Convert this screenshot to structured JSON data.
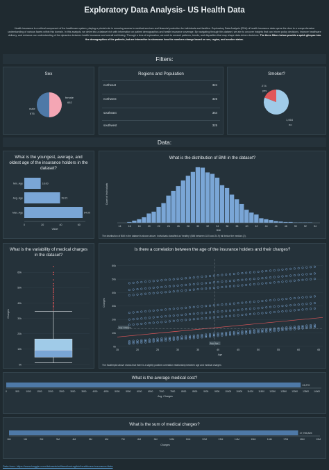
{
  "header": {
    "title": "Exploratory Data Analysis- US Health Data",
    "intro_text": "Health insurance is a critical component of the healthcare system, playing a pivotal role in ensuring access to medical services and financial protection for individuals and families. Exploratory Data Analysis (EDA) of health insurance data opens the door to a comprehensive understanding of various facets within this domain. In this analysis, we delve into a dataset rich with information on patient demographics and health insurance coverage. By navigating through this dataset, we aim to uncover insights that can inform policy decisions, improve healthcare delivery, and enhance our understanding of the dynamics between health insurance and overall well-being. Through a lens of exploration, we seek to unravel patterns, trends, and disparities that may shape data-driven decisions.",
    "intro_bold": "The three filters below provide a quick glimpse into the demographics of the patients, but are interactive to showcase how the numbers change based on sex, region, and smoker status."
  },
  "filters": {
    "heading": "Filters:",
    "sex": {
      "title": "Sex",
      "female_label": "female",
      "female_value": "662",
      "male_label": "male",
      "male_value": "676",
      "female_color": "#f4a6b4",
      "male_color": "#4e79a7"
    },
    "regions": {
      "title": "Regions and Population",
      "rows": [
        {
          "name": "northeast",
          "value": "324"
        },
        {
          "name": "northwest",
          "value": "325"
        },
        {
          "name": "southeast",
          "value": "364"
        },
        {
          "name": "southwest",
          "value": "325"
        }
      ]
    },
    "smoker": {
      "title": "Smoker?",
      "yes_label": "yes",
      "yes_value": "274",
      "no_label": "no",
      "no_value": "1,064",
      "yes_color": "#e15759",
      "no_color": "#a0cbe8"
    }
  },
  "data_section": {
    "heading": "Data:"
  },
  "age_panel": {
    "title": "What is the youngest, average, and oldest age of the insurance holders in the dataset?",
    "xlabel": "Value"
  },
  "bmi_panel": {
    "title": "What is the distribution of BMI in the dataset?",
    "xlabel": "BMI",
    "ylabel": "Count of Individuals",
    "caption": "The distribution of BMI in the dataset is shown above. Individuals classified as 'healthy' (BMI between 18.5 and 24.9) fall below the median (2)."
  },
  "charges_box_panel": {
    "title": "What is the variability of medical charges in the dataset?",
    "ylabel": "Charges"
  },
  "scatter_panel": {
    "title": "Is there a correlation between the age of the insurance holders and their charges?",
    "xlabel": "Age",
    "ylabel": "Charges",
    "caption": "The Scatterplot above shows that there is a slightly positive correlation relationship between age and medical charges"
  },
  "avg_panel": {
    "title": "What is the average medical cost?",
    "xlabel": "Avg. Charges"
  },
  "sum_panel": {
    "title": "What is the sum of medical charges?",
    "xlabel": "Charges"
  },
  "footer": {
    "link": "Data from: https://www.kaggle.com/datasets/willianoliveiragibin/healthcare-insurance/data"
  },
  "chart_data": [
    {
      "type": "pie",
      "title": "Sex",
      "categories": [
        "female",
        "male"
      ],
      "values": [
        662,
        676
      ],
      "colors": [
        "#f4a6b4",
        "#4e79a7"
      ]
    },
    {
      "type": "table",
      "title": "Regions and Population",
      "categories": [
        "northeast",
        "northwest",
        "southeast",
        "southwest"
      ],
      "values": [
        324,
        325,
        364,
        325
      ]
    },
    {
      "type": "pie",
      "title": "Smoker?",
      "categories": [
        "yes",
        "no"
      ],
      "values": [
        274,
        1064
      ],
      "colors": [
        "#e15759",
        "#a0cbe8"
      ]
    },
    {
      "type": "bar",
      "title": "What is the youngest, average, and oldest age of the insurance holders in the dataset?",
      "categories": [
        "Min. Age",
        "Avg. Age",
        "Max. Age"
      ],
      "values": [
        18.0,
        39.21,
        64.0
      ],
      "data_labels": [
        "18.00",
        "39.21",
        "64.00"
      ],
      "xlabel": "Value",
      "xlim": [
        0,
        67
      ],
      "xticks": [
        0,
        20,
        40,
        60
      ]
    },
    {
      "type": "bar",
      "title": "What is the distribution of BMI in the dataset?",
      "x": [
        16,
        17,
        18,
        19,
        20,
        21,
        22,
        23,
        24,
        25,
        26,
        27,
        28,
        29,
        30,
        31,
        32,
        33,
        34,
        35,
        36,
        37,
        38,
        39,
        40,
        41,
        42,
        43,
        44,
        45,
        46,
        47,
        48,
        49,
        50,
        51,
        52,
        53
      ],
      "values": [
        2,
        5,
        8,
        12,
        20,
        24,
        34,
        42,
        58,
        68,
        78,
        90,
        100,
        108,
        118,
        117,
        107,
        104,
        96,
        80,
        74,
        60,
        50,
        40,
        28,
        22,
        18,
        10,
        8,
        6,
        4,
        3,
        2,
        2,
        1,
        1,
        1,
        1
      ],
      "xlabel": "BMI",
      "ylabel": "Count of Individuals",
      "xticks": [
        14,
        16,
        18,
        20,
        22,
        24,
        26,
        28,
        30,
        32,
        34,
        36,
        38,
        40,
        42,
        44,
        46,
        48,
        50,
        52,
        54
      ]
    },
    {
      "type": "box",
      "title": "What is the variability of medical charges in the dataset?",
      "ylabel": "Charges",
      "min": 1122,
      "q1": 4740,
      "median": 9382,
      "q3": 16640,
      "upper_whisker": 34490,
      "max": 63770,
      "yticks": [
        "0k",
        "10k",
        "20k",
        "30k",
        "40k",
        "50k",
        "60k"
      ]
    },
    {
      "type": "scatter",
      "title": "Is there a correlation between the age of the insurance holders and their charges?",
      "xlabel": "Age",
      "ylabel": "Charges",
      "xlim": [
        15,
        66
      ],
      "ylim": [
        0,
        65000
      ],
      "xticks": [
        15,
        20,
        25,
        30,
        35,
        40,
        45,
        50,
        55,
        60,
        65
      ],
      "yticks": [
        "0k",
        "10k",
        "20k",
        "30k",
        "40k",
        "50k",
        "60k"
      ],
      "trend": {
        "x": [
          15,
          66
        ],
        "y": [
          7000,
          21500
        ]
      },
      "annotations": [
        "Avg. Age",
        "Avg. Charges"
      ]
    },
    {
      "type": "bar",
      "title": "What is the average medical cost?",
      "categories": [
        "Avg. Charges"
      ],
      "values": [
        13270
      ],
      "data_labels": [
        "13,270"
      ],
      "xlabel": "Avg. Charges",
      "xticks": [
        0,
        500,
        1000,
        1500,
        2000,
        2500,
        3000,
        3500,
        4000,
        4500,
        5000,
        5500,
        6000,
        6500,
        7000,
        7500,
        8000,
        8500,
        9000,
        9500,
        10000,
        10500,
        11000,
        11500,
        12000,
        12500,
        13000,
        13500,
        14000
      ]
    },
    {
      "type": "bar",
      "title": "What is the sum of medical charges?",
      "categories": [
        "Charges"
      ],
      "values": [
        17755825
      ],
      "data_labels": [
        "17,755,825"
      ],
      "xlabel": "Charges",
      "xticks": [
        "0M",
        "1M",
        "2M",
        "3M",
        "4M",
        "5M",
        "6M",
        "7M",
        "8M",
        "9M",
        "10M",
        "11M",
        "12M",
        "13M",
        "14M",
        "15M",
        "16M",
        "17M",
        "18M",
        "19M"
      ]
    }
  ]
}
